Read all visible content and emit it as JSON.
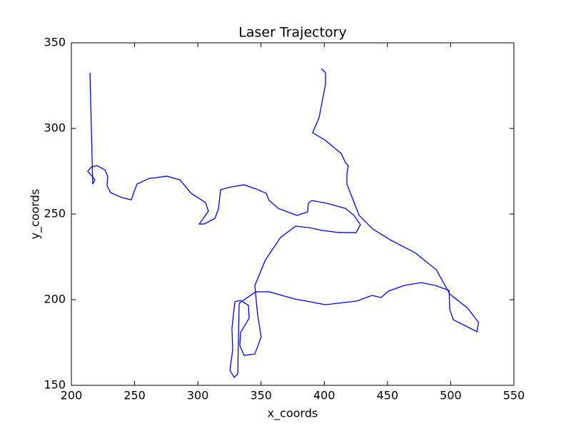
{
  "chart_data": {
    "type": "line",
    "title": "Laser Trajectory",
    "x_label": "x_coords",
    "y_label": "y_coords",
    "x": [
      214.7,
      216.9,
      218.6,
      213.0,
      215.8,
      220.3,
      226.5,
      228.8,
      228.2,
      231.0,
      240.1,
      247.4,
      249.7,
      251.9,
      261.5,
      275.6,
      285.8,
      294.8,
      306.1,
      308.4,
      304.4,
      301.1,
      305.0,
      313.5,
      316.3,
      318.0,
      325.9,
      336.6,
      346.2,
      354.1,
      356.4,
      363.7,
      378.4,
      386.9,
      387.4,
      390.2,
      402.1,
      416.8,
      423.5,
      428.6,
      425.2,
      411.7,
      398.7,
      388.0,
      377.3,
      365.4,
      353.5,
      345.1,
      347.3,
      350.1,
      345.1,
      336.6,
      333.2,
      333.8,
      340.6,
      340.0,
      333.8,
      329.3,
      327.0,
      327.6,
      325.4,
      328.8,
      331.6,
      332.7,
      345.7,
      356.4,
      376.7,
      401.0,
      425.8,
      437.7,
      445.0,
      450.7,
      463.1,
      476.7,
      488.0,
      498.7,
      499.3,
      502.1,
      520.8,
      522.0,
      513.5,
      499.3,
      488.6,
      471.7,
      453.0,
      438.3,
      427.6,
      417.9,
      417.9,
      419.0,
      416.8,
      413.4,
      400.4,
      390.8,
      395.9,
      401.0,
      401.0,
      397.6
    ],
    "y": [
      332.5,
      267.5,
      270,
      275,
      277.5,
      278.3,
      275.8,
      272.1,
      266.7,
      262.5,
      259.6,
      258.3,
      263.3,
      267.5,
      270.8,
      272.1,
      270,
      262.1,
      256.7,
      251.7,
      247.5,
      244.2,
      244.2,
      247.5,
      252.9,
      264.2,
      265.8,
      267.1,
      264.6,
      262.1,
      257.9,
      253.3,
      249.2,
      251.3,
      256.3,
      257.9,
      256.3,
      253.3,
      249.2,
      243.8,
      239.2,
      239.2,
      240.4,
      242.1,
      242.9,
      236.3,
      223.3,
      208.3,
      191.3,
      178.3,
      168.3,
      167.5,
      173.3,
      180.8,
      189.2,
      196.7,
      199.6,
      198.8,
      183.3,
      170.8,
      158.8,
      154.6,
      156.7,
      197.9,
      204.6,
      204.6,
      200.4,
      197.1,
      199.2,
      202.5,
      201.3,
      205,
      208.3,
      210,
      208.3,
      205.4,
      194.2,
      188.3,
      181.3,
      186.7,
      195,
      203.3,
      217.5,
      227.5,
      234.6,
      241.3,
      249.2,
      267.5,
      272.9,
      278.3,
      280,
      285.4,
      293.3,
      297.5,
      306.3,
      325.8,
      332.5,
      335
    ],
    "color": "#0000ff",
    "xlim": [
      200,
      550
    ],
    "ylim": [
      150,
      350
    ],
    "xticks": [
      200,
      250,
      300,
      350,
      400,
      450,
      500,
      550
    ],
    "yticks": [
      150,
      200,
      250,
      300,
      350
    ],
    "grid": false
  }
}
